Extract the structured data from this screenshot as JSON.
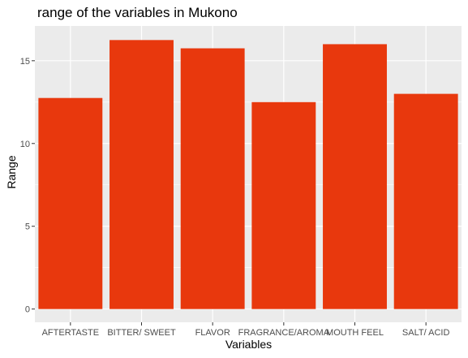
{
  "chart_data": {
    "type": "bar",
    "title": "range of the variables in Mukono",
    "xlabel": "Variables",
    "ylabel": "Range",
    "categories": [
      "AFTERTASTE",
      "BITTER/ SWEET",
      "FLAVOR",
      "FRAGRANCE/AROMA",
      "MOUTH FEEL",
      "SALT/ ACID"
    ],
    "values": [
      12.75,
      16.25,
      15.75,
      12.5,
      16.0,
      13.0
    ],
    "ylim": [
      -0.8,
      17.1
    ],
    "yticks": [
      0,
      5,
      10,
      15
    ],
    "ytick_labels": [
      "0",
      "5",
      "10",
      "15"
    ],
    "grid": true,
    "bar_color": "#E8380D",
    "panel_color": "#EBEBEB",
    "grid_color": "#FFFFFF"
  }
}
